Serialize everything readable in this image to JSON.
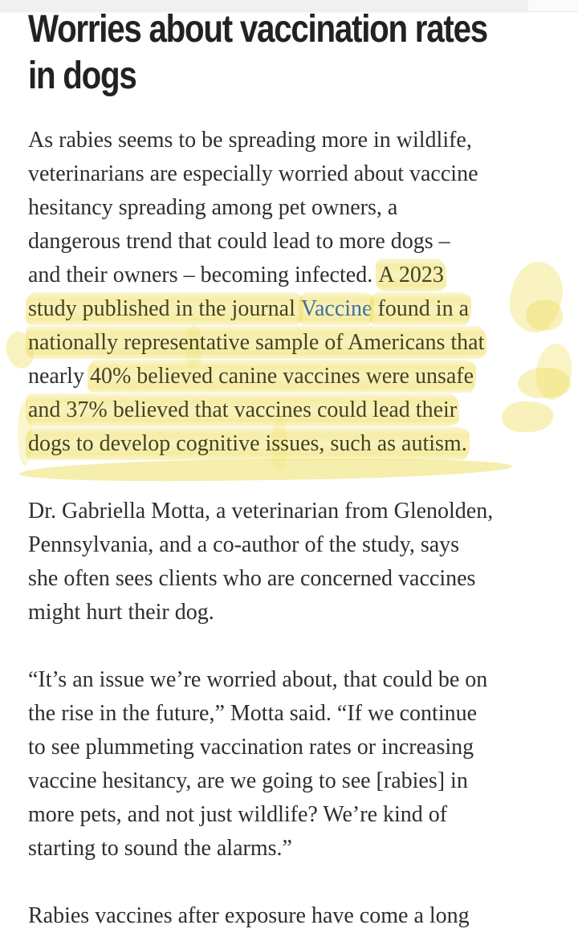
{
  "theme": {
    "page_bg": "#ffffff",
    "text_color": "#2e2e2e",
    "heading_color": "#222222",
    "link_color": "#3f6e9c",
    "highlight_yellow": "#eede5c",
    "highlight_text_color": "#45431f",
    "top_bar_left_bg": "#f0f0f0",
    "top_bar_right_bg": "#fbfbfb"
  },
  "article": {
    "heading_lines": [
      "Worries about vaccination rates",
      "in dogs"
    ],
    "journal_link_label": "Vaccine",
    "paragraphs": [
      {
        "lines": [
          [
            {
              "t": "As rabies seems to be spreading more in wildlife,"
            }
          ],
          [
            {
              "t": "veterinarians are especially worried about vaccine"
            }
          ],
          [
            {
              "t": "hesitancy spreading among pet owners, a"
            }
          ],
          [
            {
              "t": "dangerous trend that could lead to more dogs –"
            }
          ],
          [
            {
              "t": "and their owners – becoming infected. "
            },
            {
              "t": "A 2023",
              "h": true
            }
          ],
          [
            {
              "t": "study published in the journal ",
              "h": true
            },
            {
              "t": "Vaccine",
              "h": true,
              "link": true
            },
            {
              "t": " found in a",
              "h": true
            }
          ],
          [
            {
              "t": "nationally representative sample of Americans that",
              "h": true
            }
          ],
          [
            {
              "t": "nearly "
            },
            {
              "t": "40% believed canine vaccines were unsafe",
              "h": true
            }
          ],
          [
            {
              "t": "and 37% believed that vaccines could lead their",
              "h": true
            }
          ],
          [
            {
              "t": "dogs to develop cognitive issues, such as autism.",
              "h": true
            }
          ]
        ]
      },
      {
        "lines": [
          [
            {
              "t": "Dr. Gabriella Motta, a veterinarian from Glenolden,"
            }
          ],
          [
            {
              "t": "Pennsylvania, and a co-author of the study, says"
            }
          ],
          [
            {
              "t": "she often sees clients who are concerned vaccines"
            }
          ],
          [
            {
              "t": "might hurt their dog."
            }
          ]
        ]
      },
      {
        "lines": [
          [
            {
              "t": "“It’s an issue we’re worried about, that could be on"
            }
          ],
          [
            {
              "t": "the rise in the future,” Motta said. “If we continue"
            }
          ],
          [
            {
              "t": "to see plummeting vaccination rates or increasing"
            }
          ],
          [
            {
              "t": "vaccine hesitancy, are we going to see [rabies] in"
            }
          ],
          [
            {
              "t": "more pets, and not just wildlife? We’re kind of"
            }
          ],
          [
            {
              "t": "starting to sound the alarms.”"
            }
          ]
        ]
      },
      {
        "lines": [
          [
            {
              "t": "Rabies vaccines after exposure have come a long"
            }
          ]
        ]
      }
    ]
  }
}
